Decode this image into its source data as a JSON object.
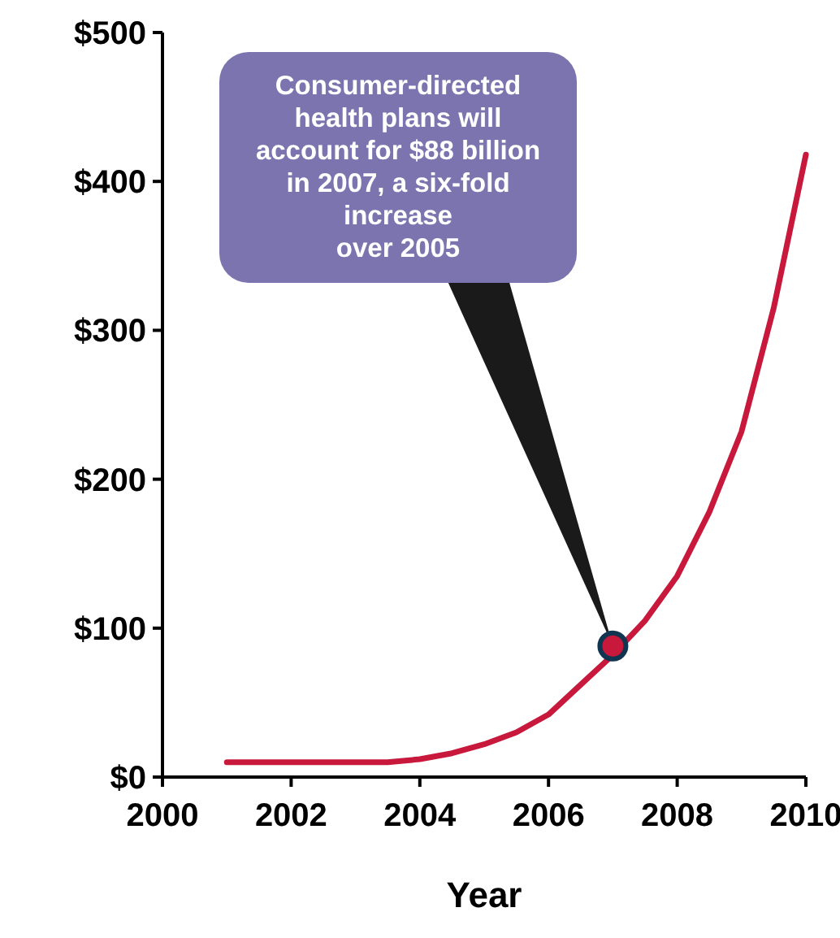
{
  "chart_data": {
    "type": "line",
    "xlabel": "Year",
    "x": [
      2001,
      2002,
      2003,
      2003.5,
      2004,
      2004.5,
      2005,
      2005.5,
      2006,
      2006.5,
      2007,
      2007.5,
      2008,
      2008.5,
      2009,
      2009.5,
      2010
    ],
    "series": [
      {
        "color": "#c8183c",
        "values": [
          10,
          10,
          10,
          10,
          12,
          16,
          22,
          30,
          42,
          62,
          82,
          105,
          135,
          178,
          232,
          315,
          418
        ]
      },
      {
        "type": "scatter",
        "color": "#c8183c",
        "x": [
          2007
        ],
        "values": [
          88
        ],
        "marker": "circle"
      }
    ],
    "xlim": [
      2000,
      2010
    ],
    "xticks": [
      2000,
      2002,
      2004,
      2006,
      2008,
      2010
    ],
    "ylim": [
      0,
      500
    ],
    "yticks": [
      {
        "value": 0,
        "label": "$0"
      },
      {
        "value": 100,
        "label": "$100"
      },
      {
        "value": 200,
        "label": "$200"
      },
      {
        "value": 300,
        "label": "$300"
      },
      {
        "value": 400,
        "label": "$400"
      },
      {
        "value": 500,
        "label": "$500"
      }
    ],
    "grid": false,
    "marker": "none",
    "line_style": "solid",
    "annotations": [
      {
        "text": "Consumer-directed\nhealth plans will\naccount for $88 billion\nin 2007, a six-fold\nincrease\nover 2005",
        "x": 2007,
        "y": 88
      }
    ]
  }
}
